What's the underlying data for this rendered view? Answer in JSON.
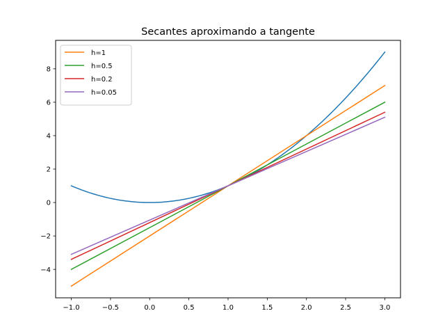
{
  "chart_data": {
    "type": "line",
    "title": "Secantes aproximando a tangente",
    "xlabel": "",
    "ylabel": "",
    "xlim": [
      -1.2,
      3.2
    ],
    "ylim": [
      -5.7,
      9.7
    ],
    "xticks": [
      -1.0,
      -0.5,
      0.0,
      0.5,
      1.0,
      1.5,
      2.0,
      2.5,
      3.0
    ],
    "xtick_labels": [
      "−1.0",
      "−0.5",
      "0.0",
      "0.5",
      "1.0",
      "1.5",
      "2.0",
      "2.5",
      "3.0"
    ],
    "yticks": [
      -4,
      -2,
      0,
      2,
      4,
      6,
      8
    ],
    "ytick_labels": [
      "−4",
      "−2",
      "0",
      "2",
      "4",
      "6",
      "8"
    ],
    "grid": false,
    "legend_position": "top-left",
    "series": [
      {
        "kind": "curve",
        "color": "#1f77b4",
        "x": [
          -1.0,
          -0.75,
          -0.5,
          -0.25,
          0.0,
          0.25,
          0.5,
          0.75,
          1.0,
          1.25,
          1.5,
          1.75,
          2.0,
          2.25,
          2.5,
          2.75,
          3.0
        ],
        "y": [
          1.0,
          0.5625,
          0.25,
          0.0625,
          0.0,
          0.0625,
          0.25,
          0.5625,
          1.0,
          1.5625,
          2.25,
          3.0625,
          4.0,
          5.0625,
          6.25,
          7.5625,
          9.0
        ]
      },
      {
        "kind": "secant",
        "name": "h=1",
        "color": "#ff7f0e",
        "x": [
          -1.0,
          3.0
        ],
        "y": [
          -5.0,
          7.0
        ]
      },
      {
        "kind": "secant",
        "name": "h=0.5",
        "color": "#2ca02c",
        "x": [
          -1.0,
          3.0
        ],
        "y": [
          -4.0,
          6.0
        ]
      },
      {
        "kind": "secant",
        "name": "h=0.2",
        "color": "#d62728",
        "x": [
          -1.0,
          3.0
        ],
        "y": [
          -3.4,
          5.4
        ]
      },
      {
        "kind": "secant",
        "name": "h=0.05",
        "color": "#9467bd",
        "x": [
          -1.0,
          3.0
        ],
        "y": [
          -3.1,
          5.1
        ]
      }
    ]
  }
}
